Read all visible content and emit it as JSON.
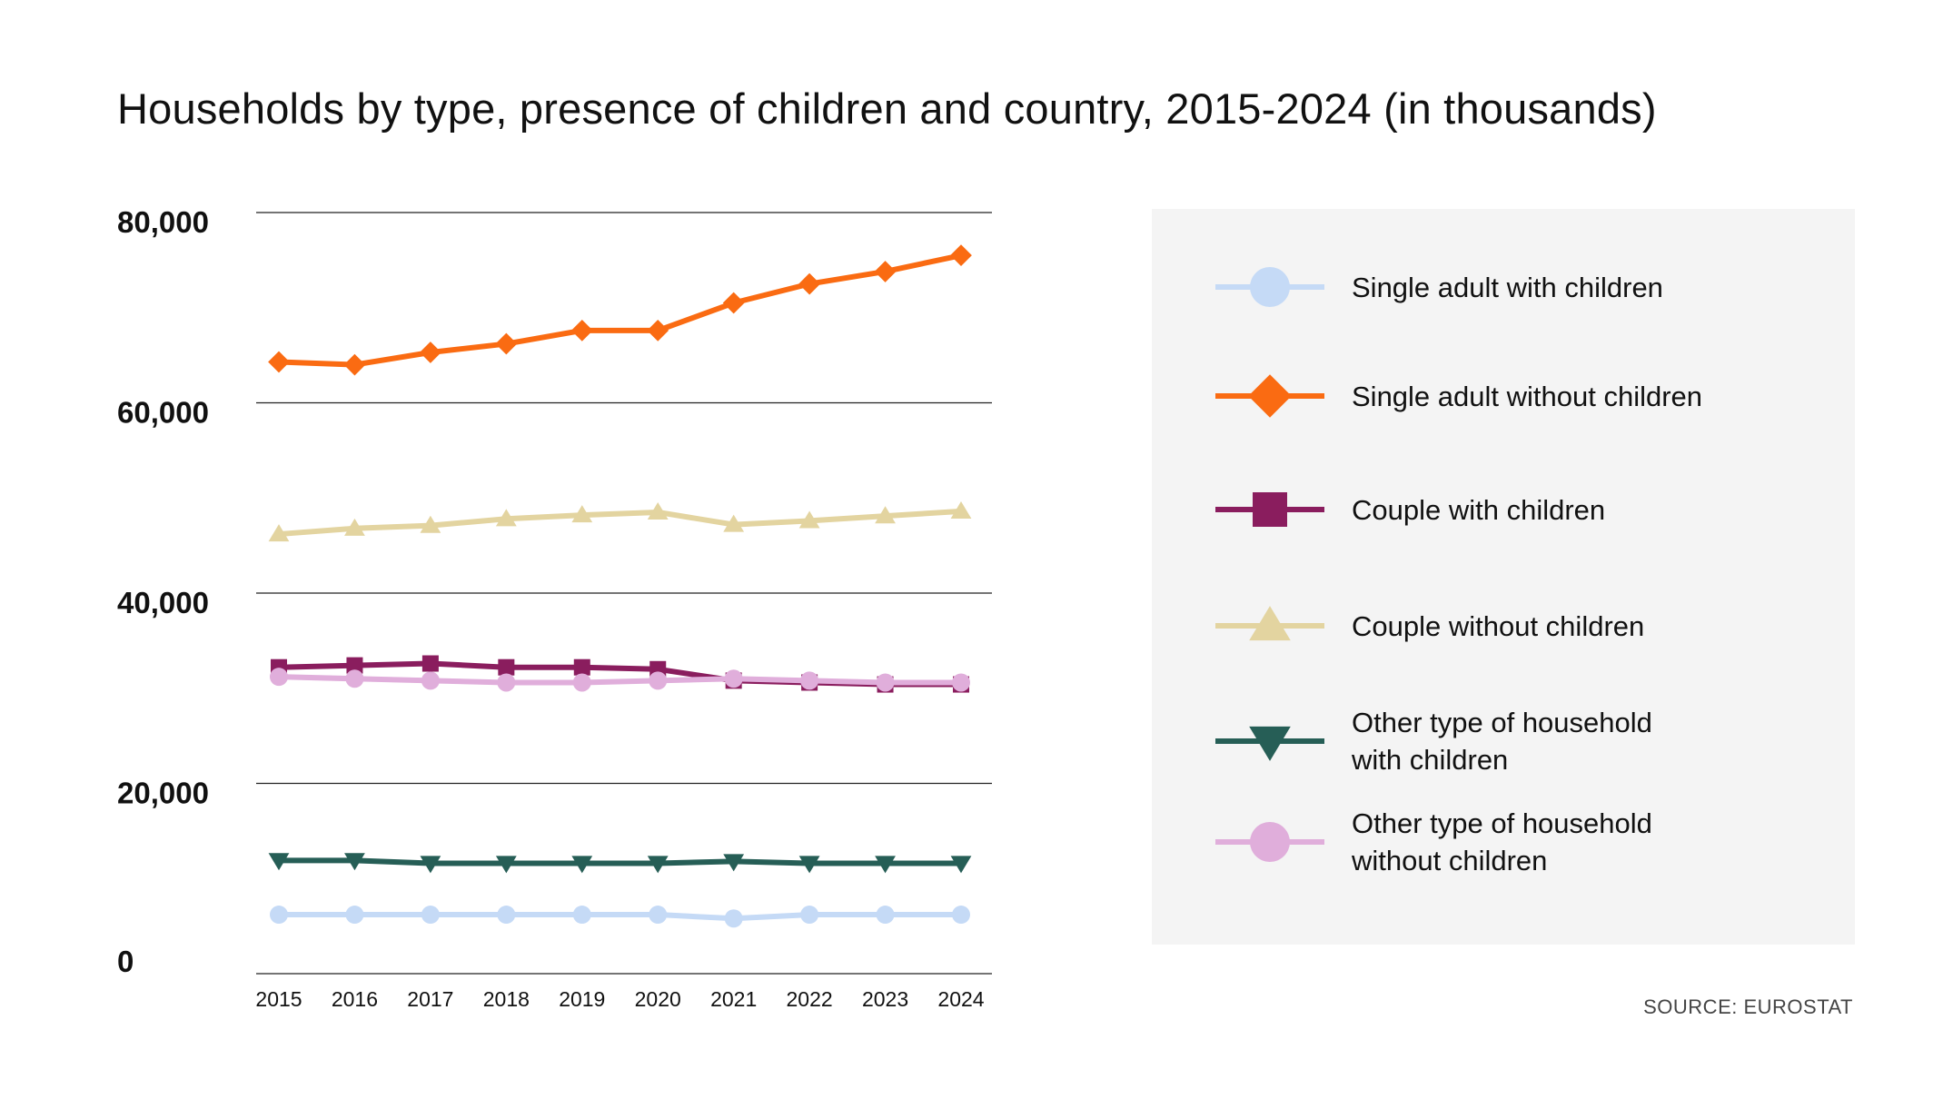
{
  "title": "Households by type, presence of children and country, 2015-2024 (in thousands)",
  "source": "SOURCE: EUROSTAT",
  "chart_data": {
    "type": "line",
    "title": "Households by type, presence of children and country, 2015-2024 (in thousands)",
    "xlabel": "",
    "ylabel": "",
    "ylim": [
      0,
      80000
    ],
    "yticks": [
      0,
      20000,
      40000,
      60000,
      80000
    ],
    "ytick_labels": [
      "0",
      "20,000",
      "40,000",
      "60,000",
      "80,000"
    ],
    "categories": [
      "2015",
      "2016",
      "2017",
      "2018",
      "2019",
      "2020",
      "2021",
      "2022",
      "2023",
      "2024"
    ],
    "series": [
      {
        "name": "Single adult with children",
        "color": "#c5daf6",
        "marker": "circle",
        "values": [
          6200,
          6200,
          6200,
          6200,
          6200,
          6200,
          5800,
          6200,
          6200,
          6200
        ]
      },
      {
        "name": "Single adult without children",
        "color": "#fa6b12",
        "marker": "diamond",
        "values": [
          64300,
          64000,
          65300,
          66200,
          67600,
          67600,
          70500,
          72500,
          73800,
          75500
        ]
      },
      {
        "name": "Couple with children",
        "color": "#8a1d5e",
        "marker": "square",
        "values": [
          32200,
          32400,
          32600,
          32200,
          32200,
          32000,
          30800,
          30600,
          30400,
          30400
        ]
      },
      {
        "name": "Couple without children",
        "color": "#e3d4a0",
        "marker": "triangle-up",
        "values": [
          46200,
          46800,
          47100,
          47800,
          48200,
          48500,
          47200,
          47600,
          48100,
          48600
        ]
      },
      {
        "name": "Other type of household\nwith children",
        "color": "#265e56",
        "marker": "triangle-down",
        "values": [
          11900,
          11900,
          11600,
          11600,
          11600,
          11600,
          11800,
          11600,
          11600,
          11600
        ]
      },
      {
        "name": "Other type of household\nwithout children",
        "color": "#e0aedb",
        "marker": "circle",
        "values": [
          31200,
          31000,
          30800,
          30600,
          30600,
          30800,
          31000,
          30800,
          30600,
          30600
        ]
      }
    ]
  }
}
